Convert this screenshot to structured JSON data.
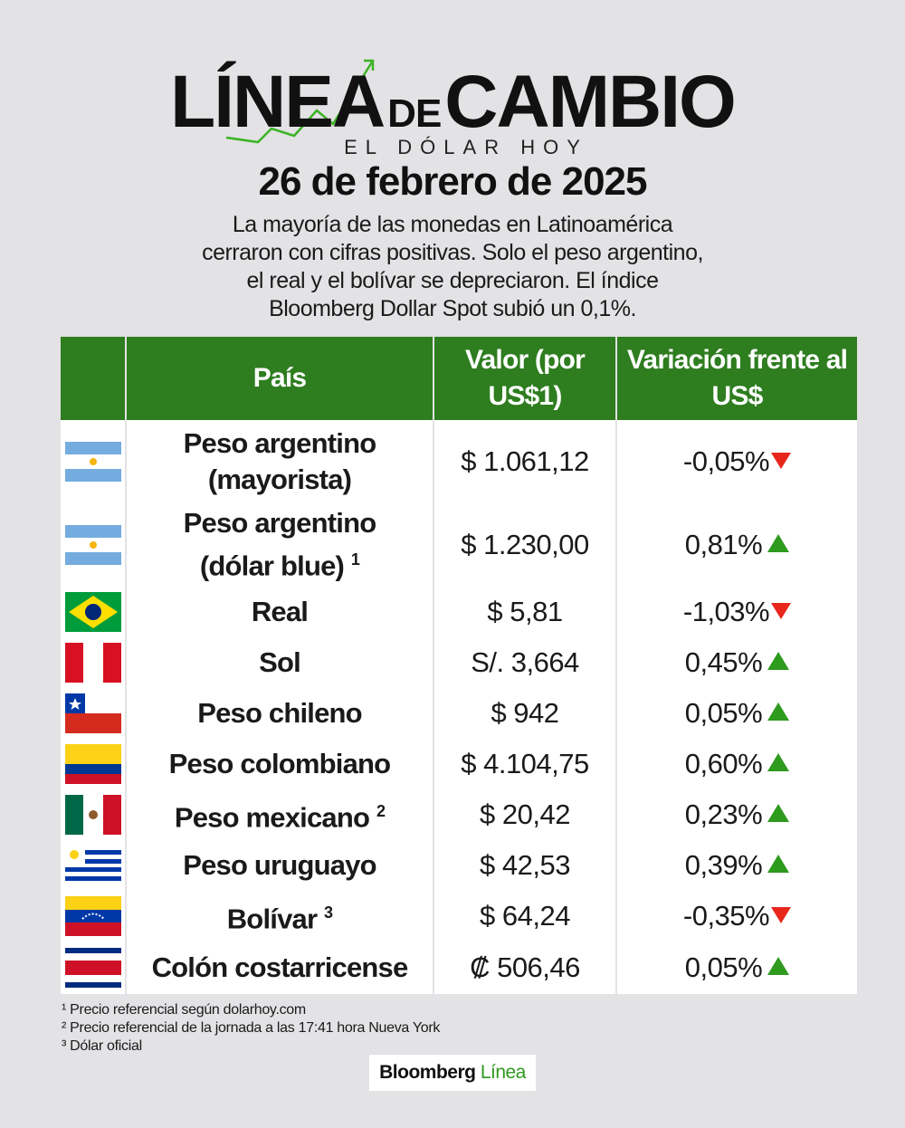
{
  "header": {
    "logo_part1": "LÍNEA",
    "logo_part2": "DE",
    "logo_part3": "CAMBIO",
    "logo_subtitle": "EL DÓLAR HOY",
    "date": "26 de febrero de 2025",
    "intro_lines": [
      "La mayoría de las monedas en Latinoamérica",
      "cerraron con cifras positivas. Solo el peso argentino,",
      "el real y el bolívar se depreciaron. El índice",
      "Bloomberg Dollar Spot subió un 0,1%."
    ]
  },
  "table": {
    "columns": [
      "País",
      "Valor (por US$1)",
      "Variación frente al US$"
    ],
    "rows": [
      {
        "flag": "argentina-flag",
        "name_line1": "Peso argentino",
        "name_line2": "(mayorista)",
        "sup": "",
        "value": "$ 1.061,12",
        "variation": "-0,05%",
        "direction": "down"
      },
      {
        "flag": "argentina-flag",
        "name_line1": "Peso argentino",
        "name_line2": "(dólar blue)",
        "sup": "1",
        "value": "$ 1.230,00",
        "variation": "0,81%",
        "direction": "up"
      },
      {
        "flag": "brazil-flag",
        "name_line1": "Real",
        "name_line2": "",
        "sup": "",
        "value": "$ 5,81",
        "variation": "-1,03%",
        "direction": "down"
      },
      {
        "flag": "peru-flag",
        "name_line1": "Sol",
        "name_line2": "",
        "sup": "",
        "value": "S/. 3,664",
        "variation": "0,45%",
        "direction": "up"
      },
      {
        "flag": "chile-flag",
        "name_line1": "Peso chileno",
        "name_line2": "",
        "sup": "",
        "value": "$ 942",
        "variation": "0,05%",
        "direction": "up"
      },
      {
        "flag": "colombia-flag",
        "name_line1": "Peso colombiano",
        "name_line2": "",
        "sup": "",
        "value": "$ 4.104,75",
        "variation": "0,60%",
        "direction": "up"
      },
      {
        "flag": "mexico-flag",
        "name_line1": "Peso mexicano",
        "name_line2": "",
        "sup": "2",
        "value": "$ 20,42",
        "variation": "0,23%",
        "direction": "up"
      },
      {
        "flag": "uruguay-flag",
        "name_line1": "Peso uruguayo",
        "name_line2": "",
        "sup": "",
        "value": "$ 42,53",
        "variation": "0,39%",
        "direction": "up"
      },
      {
        "flag": "venezuela-flag",
        "name_line1": "Bolívar",
        "name_line2": "",
        "sup": "3",
        "value": "$ 64,24",
        "variation": "-0,35%",
        "direction": "down"
      },
      {
        "flag": "costa-rica-flag",
        "name_line1": "Colón costarricense",
        "name_line2": "",
        "sup": "",
        "value": "₡ 506,46",
        "variation": "0,05%",
        "direction": "up"
      }
    ]
  },
  "footnotes": [
    "¹ Precio referencial según dolarhoy.com",
    "² Precio referencial de la jornada a las 17:41 hora Nueva York",
    "³ Dólar oficial"
  ],
  "brand": {
    "part1": "Bloomberg",
    "part2": "Línea"
  },
  "colors": {
    "header_green": "#2e7d1f",
    "up": "#2e9a1e",
    "down": "#e8261c",
    "background": "#e3e2e5"
  }
}
